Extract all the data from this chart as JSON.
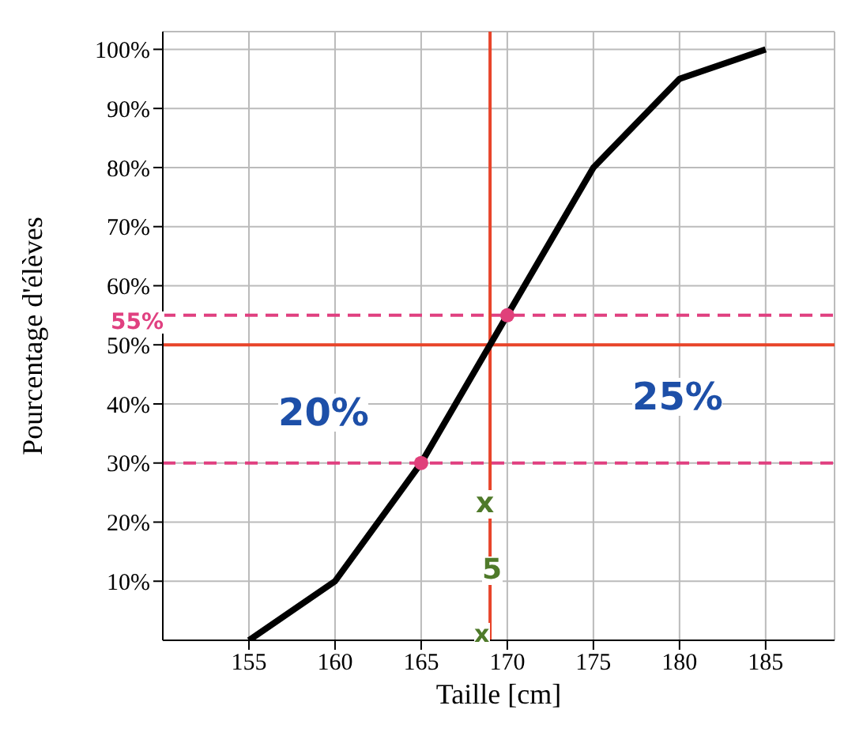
{
  "chart_data": {
    "type": "line",
    "xlabel": "Taille [cm]",
    "ylabel": "Pourcentage d'élèves",
    "x": [
      155,
      160,
      165,
      170,
      175,
      180,
      185
    ],
    "series": [
      {
        "color": "#000000",
        "values": [
          0,
          10,
          30,
          55,
          80,
          95,
          100
        ]
      },
      {
        "type": "scatter",
        "color": "#e0407a",
        "x": [
          165,
          170
        ],
        "values": [
          30,
          55
        ]
      }
    ],
    "xlim": [
      150,
      189
    ],
    "xticks": [
      155,
      160,
      165,
      170,
      175,
      180,
      185
    ],
    "ylim": [
      0,
      103
    ],
    "yticks": [
      {
        "value": 10,
        "label": "10%"
      },
      {
        "value": 20,
        "label": "20%"
      },
      {
        "value": 30,
        "label": "30%"
      },
      {
        "value": 40,
        "label": "40%"
      },
      {
        "value": 50,
        "label": "50%"
      },
      {
        "value": 60,
        "label": "60%"
      },
      {
        "value": 70,
        "label": "70%"
      },
      {
        "value": 80,
        "label": "80%"
      },
      {
        "value": 90,
        "label": "90%"
      },
      {
        "value": 100,
        "label": "100%"
      }
    ],
    "grid": true,
    "line_style": "solid",
    "ref_lines": [
      {
        "axis": "y",
        "value": 50,
        "color": "#e8442a",
        "line_style": "solid"
      },
      {
        "axis": "x",
        "value": 169,
        "color": "#e8442a",
        "line_style": "solid"
      },
      {
        "axis": "y",
        "value": 55,
        "color": "#e04080",
        "line_style": "dashed"
      },
      {
        "axis": "y",
        "value": 30,
        "color": "#e04080",
        "line_style": "dashed"
      }
    ],
    "annotations": [
      "55%",
      "20%",
      "25%",
      "x",
      "5",
      "x"
    ]
  }
}
